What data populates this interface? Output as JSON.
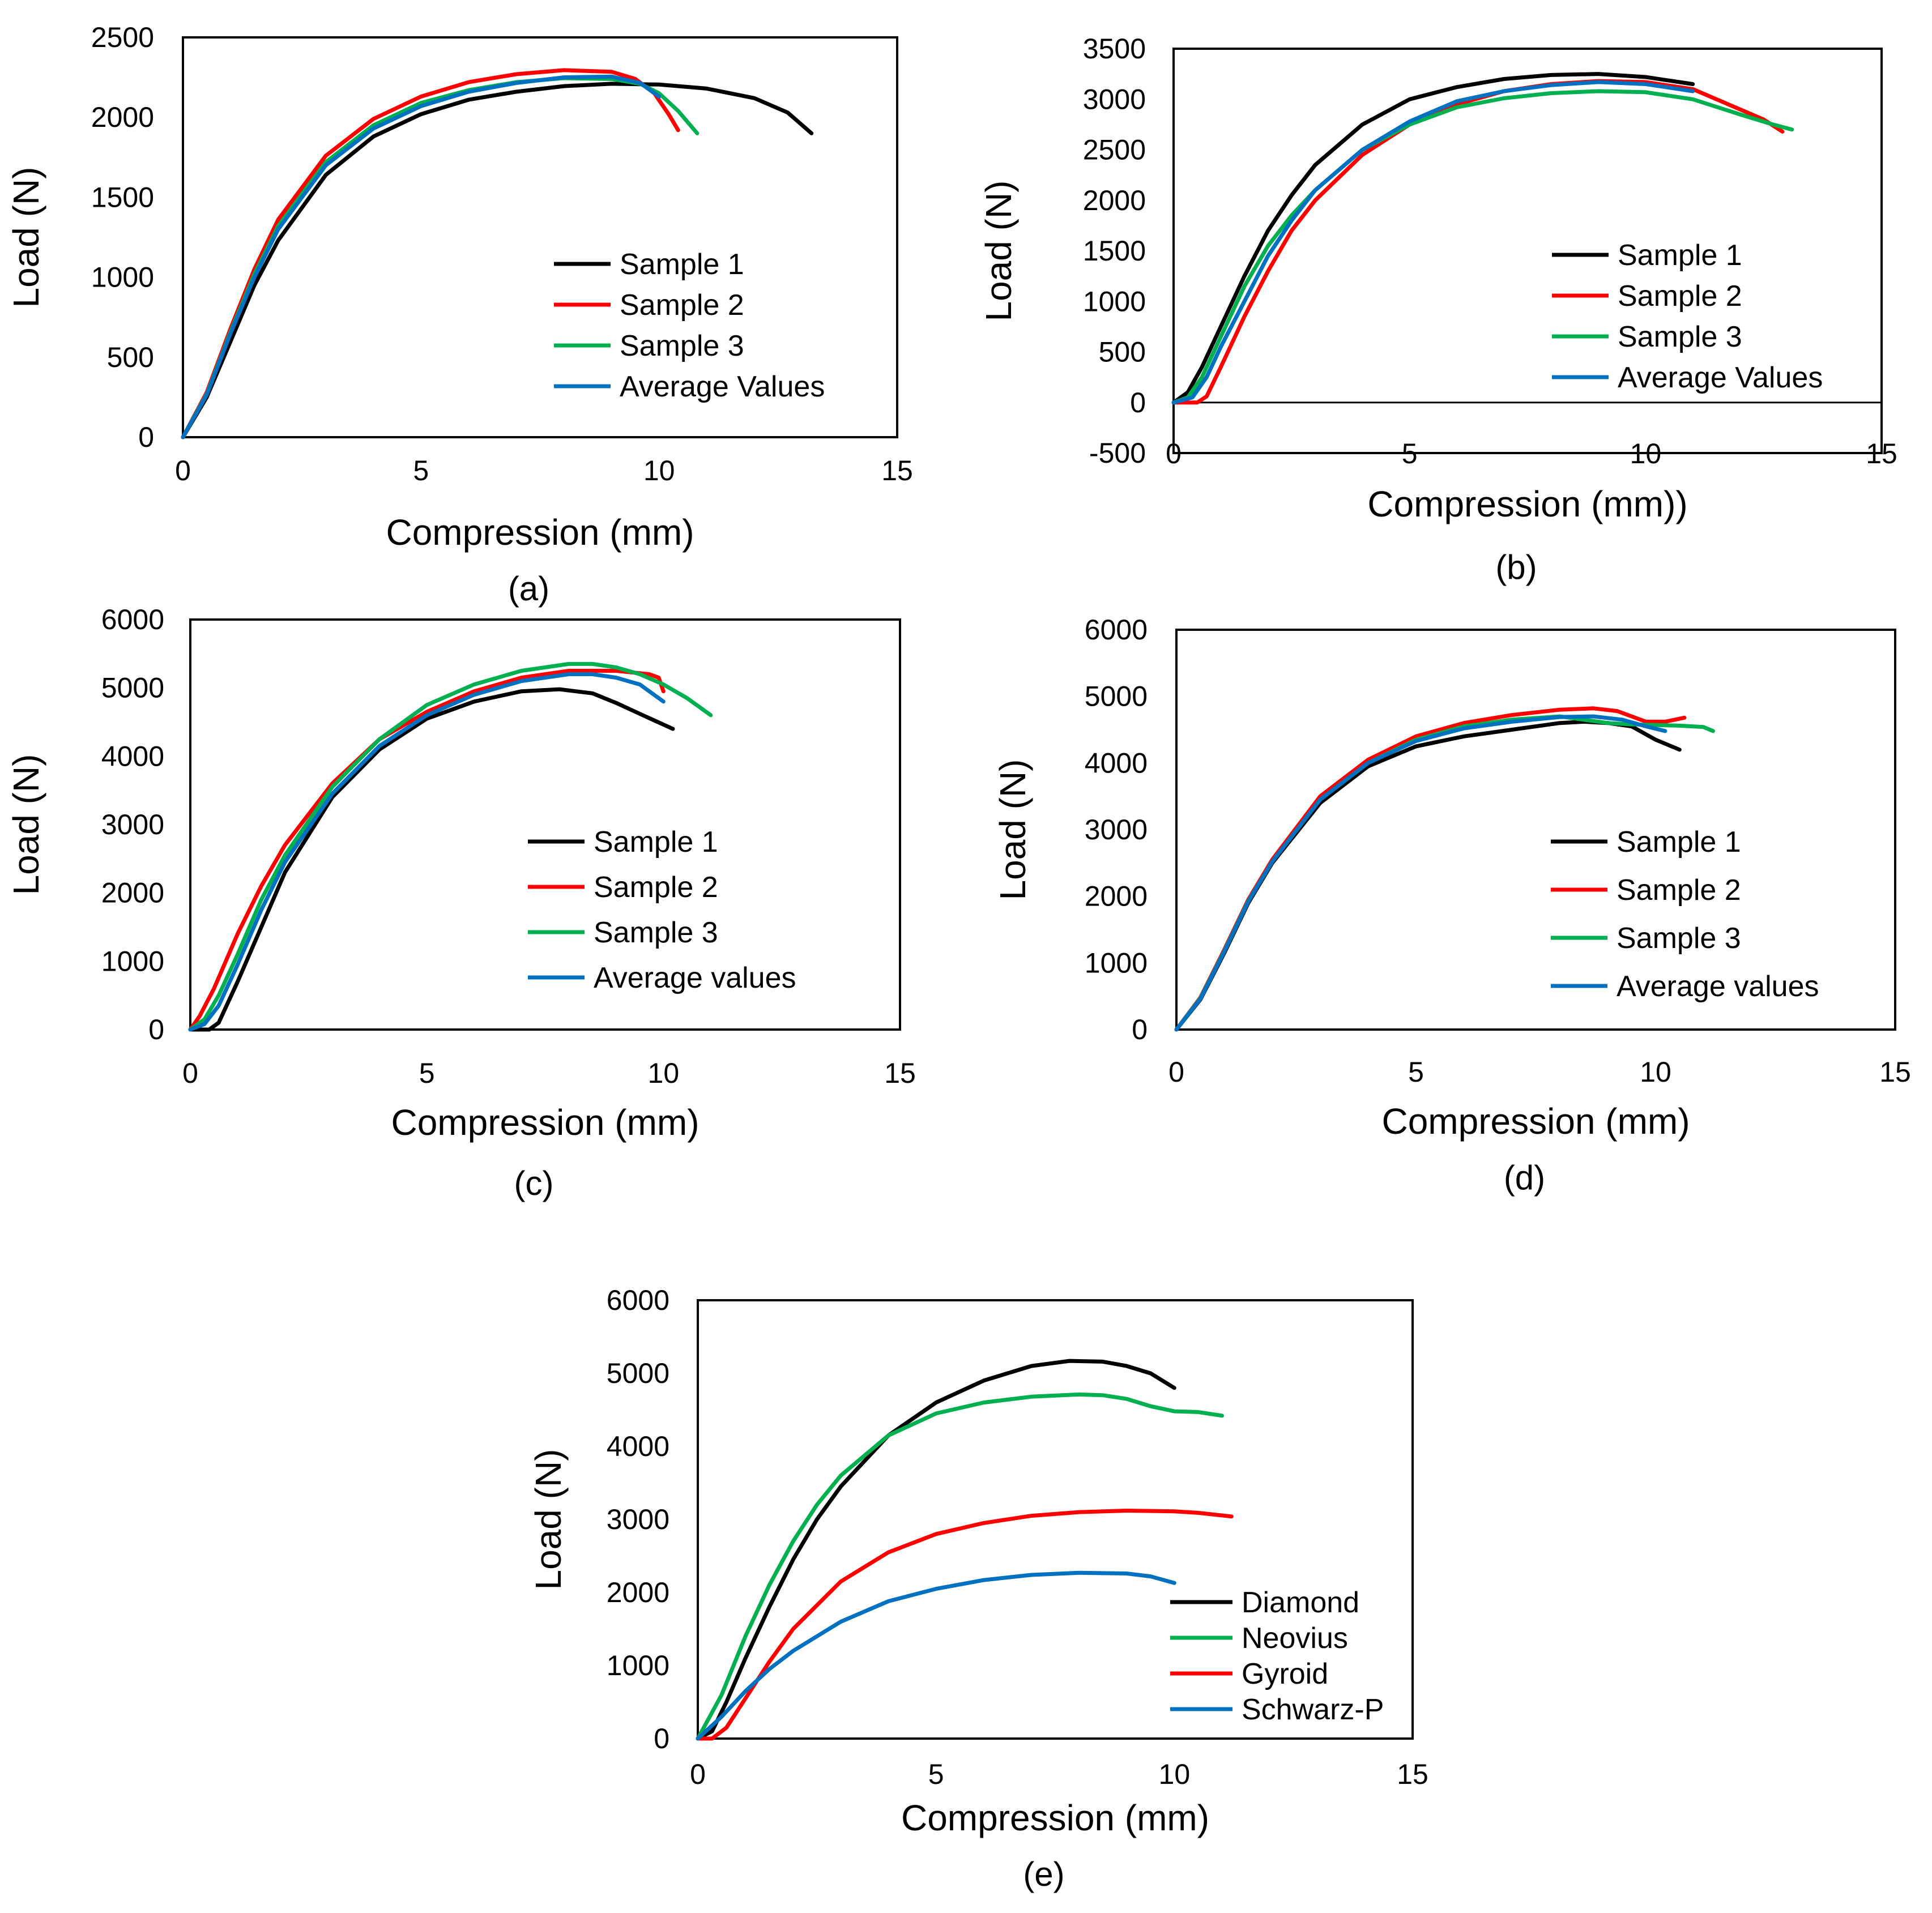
{
  "colors": {
    "black": "#000000",
    "red": "#ff0000",
    "green": "#00b050",
    "blue": "#0070c0"
  },
  "chart_data": [
    {
      "id": "a",
      "type": "line",
      "caption": "(a)",
      "xlabel": "Compression (mm)",
      "ylabel": "Load (N)",
      "xlim": [
        0,
        15
      ],
      "ylim": [
        0,
        2500
      ],
      "xticks": [
        "0",
        "5",
        "10",
        "15"
      ],
      "yticks": [
        "0",
        "500",
        "1000",
        "1500",
        "2000",
        "2500"
      ],
      "ytick_values": [
        0,
        500,
        1000,
        1500,
        2000,
        2500
      ],
      "legend_position": "bottom-right",
      "series": [
        {
          "name": "Sample 1",
          "color": "#000000",
          "x": [
            0,
            0.5,
            1,
            1.5,
            2,
            3,
            4,
            5,
            6,
            7,
            8,
            9,
            10,
            11,
            12,
            12.7,
            13.2
          ],
          "y": [
            0,
            250,
            600,
            950,
            1230,
            1640,
            1880,
            2020,
            2110,
            2160,
            2195,
            2210,
            2205,
            2180,
            2120,
            2030,
            1900
          ]
        },
        {
          "name": "Sample 2",
          "color": "#ff0000",
          "x": [
            0,
            0.5,
            1,
            1.5,
            2,
            3,
            4,
            5,
            6,
            7,
            8,
            9,
            9.5,
            9.9,
            10.2,
            10.4
          ],
          "y": [
            0,
            280,
            680,
            1050,
            1360,
            1760,
            1990,
            2130,
            2220,
            2270,
            2295,
            2285,
            2240,
            2150,
            2020,
            1920
          ]
        },
        {
          "name": "Sample 3",
          "color": "#00b050",
          "x": [
            0,
            0.5,
            1,
            1.5,
            2,
            3,
            4,
            5,
            6,
            7,
            8,
            9,
            9.6,
            10,
            10.4,
            10.8
          ],
          "y": [
            0,
            270,
            660,
            1020,
            1320,
            1720,
            1950,
            2090,
            2170,
            2220,
            2245,
            2240,
            2210,
            2150,
            2040,
            1900
          ]
        },
        {
          "name": "Average Values",
          "color": "#0070c0",
          "x": [
            0,
            0.5,
            1,
            1.5,
            2,
            3,
            4,
            5,
            6,
            7,
            8,
            9,
            9.6,
            10
          ],
          "y": [
            0,
            265,
            650,
            1000,
            1300,
            1700,
            1930,
            2070,
            2160,
            2215,
            2250,
            2255,
            2215,
            2130
          ]
        }
      ]
    },
    {
      "id": "b",
      "type": "line",
      "caption": "(b)",
      "xlabel": "Compression (mm))",
      "ylabel": "Load (N)",
      "xlim": [
        0,
        15
      ],
      "ylim": [
        -500,
        3500
      ],
      "xticks": [
        "0",
        "5",
        "10",
        "15"
      ],
      "yticks": [
        "-500",
        "0",
        "500",
        "1000",
        "1500",
        "2000",
        "2500",
        "3000",
        "3500"
      ],
      "ytick_values": [
        -500,
        0,
        500,
        1000,
        1500,
        2000,
        2500,
        3000,
        3500
      ],
      "zero_axis": true,
      "legend_position": "right",
      "series": [
        {
          "name": "Sample 1",
          "color": "#000000",
          "x": [
            0,
            0.3,
            0.6,
            1,
            1.5,
            2,
            2.5,
            3,
            4,
            5,
            6,
            7,
            8,
            9,
            10,
            11
          ],
          "y": [
            0,
            100,
            350,
            750,
            1250,
            1700,
            2050,
            2350,
            2750,
            3000,
            3120,
            3200,
            3240,
            3250,
            3220,
            3150
          ]
        },
        {
          "name": "Sample 2",
          "color": "#ff0000",
          "x": [
            0,
            0.5,
            0.7,
            1,
            1.5,
            2,
            2.5,
            3,
            4,
            5,
            6,
            7,
            8,
            9,
            10,
            11,
            12,
            12.5,
            12.9
          ],
          "y": [
            0,
            0,
            60,
            350,
            850,
            1300,
            1700,
            2000,
            2450,
            2750,
            2950,
            3080,
            3150,
            3180,
            3170,
            3100,
            2900,
            2800,
            2680
          ]
        },
        {
          "name": "Sample 3",
          "color": "#00b050",
          "x": [
            0,
            0.3,
            0.6,
            1,
            1.5,
            2,
            2.5,
            3,
            4,
            5,
            6,
            7,
            8,
            9,
            10,
            11,
            12,
            12.7,
            13.1
          ],
          "y": [
            0,
            50,
            250,
            650,
            1150,
            1550,
            1850,
            2100,
            2500,
            2750,
            2920,
            3010,
            3060,
            3080,
            3070,
            3000,
            2850,
            2750,
            2700
          ]
        },
        {
          "name": "Average Values",
          "color": "#0070c0",
          "x": [
            0,
            0.4,
            0.7,
            1,
            1.5,
            2,
            2.5,
            3,
            4,
            5,
            6,
            7,
            8,
            9,
            10,
            11
          ],
          "y": [
            0,
            50,
            250,
            550,
            1000,
            1450,
            1800,
            2100,
            2500,
            2780,
            2980,
            3080,
            3140,
            3170,
            3150,
            3080
          ]
        }
      ]
    },
    {
      "id": "c",
      "type": "line",
      "caption": "(c)",
      "xlabel": "Compression (mm)",
      "ylabel": "Load (N)",
      "xlim": [
        0,
        15
      ],
      "ylim": [
        0,
        6000
      ],
      "xticks": [
        "0",
        "5",
        "10",
        "15"
      ],
      "yticks": [
        "0",
        "1000",
        "2000",
        "3000",
        "4000",
        "5000",
        "6000"
      ],
      "ytick_values": [
        0,
        1000,
        2000,
        3000,
        4000,
        5000,
        6000
      ],
      "legend_position": "bottom-right",
      "series": [
        {
          "name": "Sample 1",
          "color": "#000000",
          "x": [
            0,
            0.4,
            0.6,
            1,
            1.5,
            2,
            3,
            4,
            5,
            6,
            7,
            7.8,
            8.5,
            9,
            9.5,
            10.2
          ],
          "y": [
            0,
            0,
            100,
            700,
            1500,
            2300,
            3400,
            4100,
            4550,
            4800,
            4950,
            4980,
            4920,
            4780,
            4620,
            4400
          ]
        },
        {
          "name": "Sample 2",
          "color": "#ff0000",
          "x": [
            0,
            0.2,
            0.5,
            1,
            1.5,
            2,
            3,
            4,
            5,
            6,
            7,
            8,
            9,
            9.7,
            9.9,
            10
          ],
          "y": [
            0,
            200,
            600,
            1400,
            2100,
            2700,
            3600,
            4250,
            4650,
            4950,
            5150,
            5250,
            5250,
            5200,
            5150,
            4950
          ]
        },
        {
          "name": "Sample 3",
          "color": "#00b050",
          "x": [
            0,
            0.3,
            0.6,
            1,
            1.5,
            2,
            3,
            4,
            5,
            6,
            7,
            8,
            8.5,
            9,
            9.5,
            10,
            10.5,
            11
          ],
          "y": [
            0,
            150,
            500,
            1100,
            1900,
            2550,
            3550,
            4250,
            4750,
            5050,
            5250,
            5350,
            5350,
            5300,
            5200,
            5050,
            4850,
            4600
          ]
        },
        {
          "name": "Average values",
          "color": "#0070c0",
          "x": [
            0,
            0.3,
            0.6,
            1,
            1.5,
            2,
            3,
            4,
            5,
            6,
            7,
            8,
            8.5,
            9,
            9.5,
            10
          ],
          "y": [
            0,
            80,
            350,
            950,
            1750,
            2450,
            3450,
            4150,
            4600,
            4900,
            5100,
            5200,
            5200,
            5150,
            5050,
            4800
          ]
        }
      ]
    },
    {
      "id": "d",
      "type": "line",
      "caption": "(d)",
      "xlabel": "Compression (mm)",
      "ylabel": "Load (N)",
      "xlim": [
        0,
        15
      ],
      "ylim": [
        0,
        6000
      ],
      "xticks": [
        "0",
        "5",
        "10",
        "15"
      ],
      "yticks": [
        "0",
        "1000",
        "2000",
        "3000",
        "4000",
        "5000",
        "6000"
      ],
      "ytick_values": [
        0,
        1000,
        2000,
        3000,
        4000,
        5000,
        6000
      ],
      "legend_position": "bottom-right",
      "series": [
        {
          "name": "Sample 1",
          "color": "#000000",
          "x": [
            0,
            0.5,
            1,
            1.5,
            2,
            3,
            4,
            5,
            6,
            7,
            8,
            8.5,
            9,
            9.5,
            10,
            10.5
          ],
          "y": [
            0,
            450,
            1150,
            1900,
            2500,
            3400,
            3950,
            4250,
            4400,
            4500,
            4600,
            4620,
            4600,
            4550,
            4350,
            4200
          ]
        },
        {
          "name": "Sample 2",
          "color": "#ff0000",
          "x": [
            0,
            0.5,
            1,
            1.5,
            2,
            3,
            4,
            5,
            6,
            7,
            8,
            8.7,
            9.2,
            9.8,
            10.2,
            10.6
          ],
          "y": [
            0,
            480,
            1200,
            1950,
            2550,
            3500,
            4050,
            4400,
            4600,
            4720,
            4800,
            4820,
            4780,
            4620,
            4620,
            4680
          ]
        },
        {
          "name": "Sample 3",
          "color": "#00b050",
          "x": [
            0,
            0.5,
            1,
            1.5,
            2,
            3,
            4,
            5,
            6,
            7,
            8,
            9,
            9.5,
            10,
            10.5,
            11,
            11.2
          ],
          "y": [
            0,
            470,
            1180,
            1930,
            2520,
            3450,
            4000,
            4350,
            4550,
            4650,
            4700,
            4600,
            4580,
            4570,
            4560,
            4540,
            4480
          ]
        },
        {
          "name": "Average values",
          "color": "#0070c0",
          "x": [
            0,
            0.5,
            1,
            1.5,
            2,
            3,
            4,
            5,
            6,
            7,
            8,
            8.7,
            9.3,
            9.8,
            10.2
          ],
          "y": [
            0,
            460,
            1170,
            1920,
            2520,
            3450,
            4000,
            4330,
            4520,
            4620,
            4690,
            4700,
            4650,
            4550,
            4480
          ]
        }
      ]
    },
    {
      "id": "e",
      "type": "line",
      "caption": "(e)",
      "xlabel": "Compression (mm)",
      "ylabel": "Load (N)",
      "xlim": [
        0,
        15
      ],
      "ylim": [
        0,
        6000
      ],
      "xticks": [
        "0",
        "5",
        "10",
        "15"
      ],
      "yticks": [
        "0",
        "1000",
        "2000",
        "3000",
        "4000",
        "5000",
        "6000"
      ],
      "ytick_values": [
        0,
        1000,
        2000,
        3000,
        4000,
        5000,
        6000
      ],
      "legend_position": "bottom-right",
      "series": [
        {
          "name": "Diamond",
          "color": "#000000",
          "x": [
            0,
            0.3,
            0.6,
            1,
            1.5,
            2,
            2.5,
            3,
            4,
            5,
            6,
            7,
            7.8,
            8.5,
            9,
            9.5,
            10
          ],
          "y": [
            0,
            100,
            500,
            1100,
            1800,
            2450,
            3000,
            3450,
            4150,
            4600,
            4900,
            5100,
            5170,
            5160,
            5100,
            5000,
            4800
          ]
        },
        {
          "name": "Neovius",
          "color": "#00b050",
          "x": [
            0,
            0.5,
            1,
            1.5,
            2,
            2.5,
            3,
            4,
            5,
            6,
            7,
            8,
            8.5,
            9,
            9.5,
            10,
            10.5,
            11
          ],
          "y": [
            0,
            600,
            1400,
            2100,
            2700,
            3200,
            3600,
            4150,
            4450,
            4600,
            4680,
            4710,
            4700,
            4650,
            4550,
            4480,
            4470,
            4420
          ]
        },
        {
          "name": "Gyroid",
          "color": "#ff0000",
          "x": [
            0,
            0.3,
            0.6,
            1,
            1.5,
            2,
            3,
            4,
            5,
            6,
            7,
            8,
            9,
            10,
            10.5,
            11.2
          ],
          "y": [
            0,
            0,
            150,
            550,
            1050,
            1500,
            2150,
            2550,
            2800,
            2950,
            3050,
            3100,
            3120,
            3110,
            3090,
            3040
          ]
        },
        {
          "name": "Schwarz-P",
          "color": "#0070c0",
          "x": [
            0,
            0.5,
            1,
            1.5,
            2,
            3,
            4,
            5,
            6,
            7,
            8,
            9,
            9.5,
            10
          ],
          "y": [
            0,
            300,
            650,
            950,
            1200,
            1600,
            1880,
            2050,
            2170,
            2240,
            2270,
            2260,
            2220,
            2130
          ]
        }
      ]
    }
  ]
}
